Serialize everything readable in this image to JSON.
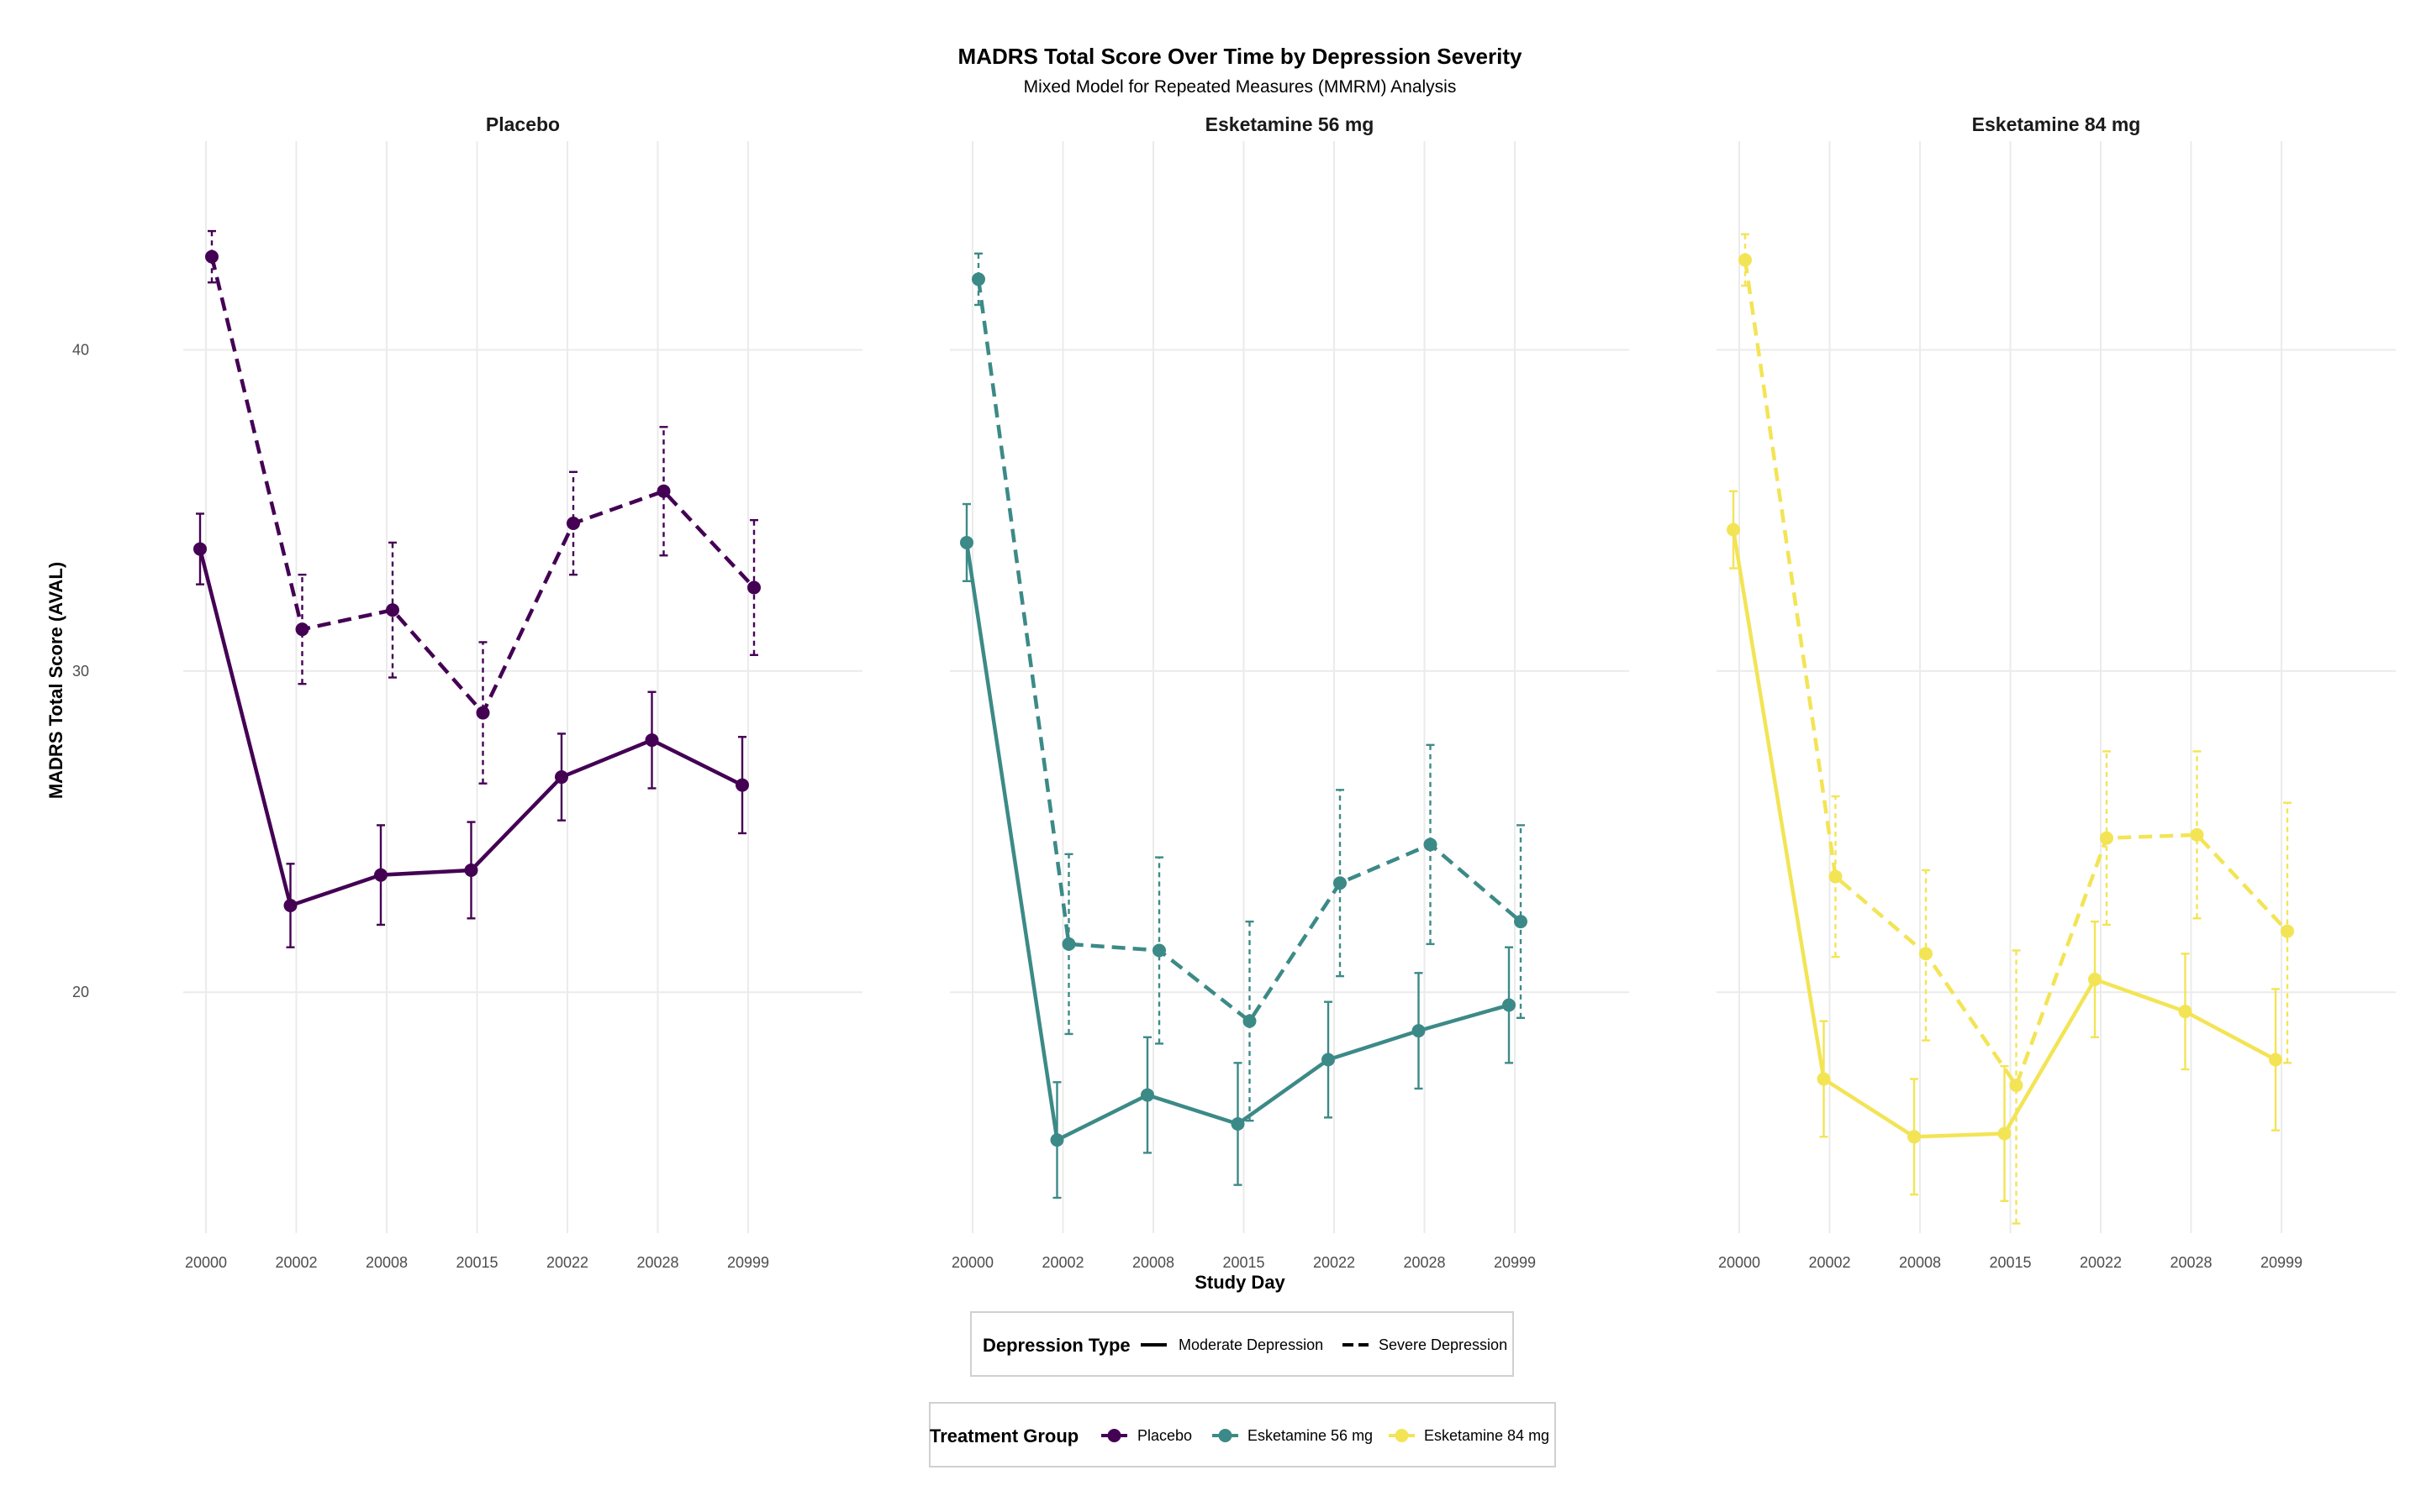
{
  "chart_data": {
    "type": "line",
    "title": "MADRS Total Score Over Time by Depression Severity",
    "subtitle": "Mixed Model for Repeated Measures (MMRM) Analysis",
    "xlabel": "Study Day",
    "ylabel": "MADRS Total Score (AVAL)",
    "x_categories": [
      "20000",
      "20002",
      "20008",
      "20015",
      "20022",
      "20028",
      "20999"
    ],
    "yticks": [
      20,
      30,
      40
    ],
    "ylim": [
      12.5,
      46.5
    ],
    "grid": true,
    "panels": [
      {
        "name": "Placebo",
        "color": "#440154",
        "series": [
          {
            "type": "Moderate Depression",
            "dash": "solid",
            "values": [
              33.8,
              22.7,
              23.65,
              23.8,
              26.7,
              27.85,
              26.45
            ],
            "lower": [
              32.7,
              21.4,
              22.1,
              22.3,
              25.35,
              26.35,
              24.95
            ],
            "upper": [
              34.9,
              24.0,
              25.2,
              25.3,
              28.05,
              29.35,
              27.95
            ]
          },
          {
            "type": "Severe Depression",
            "dash": "dashed",
            "values": [
              42.9,
              31.3,
              31.9,
              28.7,
              34.6,
              35.6,
              32.6
            ],
            "lower": [
              42.1,
              29.6,
              29.8,
              26.5,
              33.0,
              33.6,
              30.5
            ],
            "upper": [
              43.7,
              33.0,
              34.0,
              30.9,
              36.2,
              37.6,
              34.7
            ]
          }
        ]
      },
      {
        "name": "Esketamine 56 mg",
        "color": "#3c8a87",
        "series": [
          {
            "type": "Moderate Depression",
            "dash": "solid",
            "values": [
              34.0,
              15.4,
              16.8,
              15.9,
              17.9,
              18.8,
              19.6
            ],
            "lower": [
              32.8,
              13.6,
              15.0,
              14.0,
              16.1,
              17.0,
              17.8
            ],
            "upper": [
              35.2,
              17.2,
              18.6,
              17.8,
              19.7,
              20.6,
              21.4
            ]
          },
          {
            "type": "Severe Depression",
            "dash": "dashed",
            "values": [
              42.2,
              21.5,
              21.3,
              19.1,
              23.4,
              24.6,
              22.2
            ],
            "lower": [
              41.4,
              18.7,
              18.4,
              16.0,
              20.5,
              21.5,
              19.2
            ],
            "upper": [
              43.0,
              24.3,
              24.2,
              22.2,
              26.3,
              27.7,
              25.2
            ]
          }
        ]
      },
      {
        "name": "Esketamine 84 mg",
        "color": "#f3e455",
        "series": [
          {
            "type": "Moderate Depression",
            "dash": "solid",
            "values": [
              34.4,
              17.3,
              15.5,
              15.6,
              20.4,
              19.4,
              17.9
            ],
            "lower": [
              33.2,
              15.5,
              13.7,
              13.5,
              18.6,
              17.6,
              15.7
            ],
            "upper": [
              35.6,
              19.1,
              17.3,
              17.7,
              22.2,
              21.2,
              20.1
            ]
          },
          {
            "type": "Severe Depression",
            "dash": "dashed",
            "values": [
              42.8,
              23.6,
              21.2,
              17.1,
              24.8,
              24.9,
              21.9
            ],
            "lower": [
              42.0,
              21.1,
              18.5,
              12.8,
              22.1,
              22.3,
              17.8
            ],
            "upper": [
              43.6,
              26.1,
              23.8,
              21.3,
              27.5,
              27.5,
              25.9
            ]
          }
        ]
      }
    ],
    "legends": {
      "depression": {
        "title": "Depression Type",
        "items": [
          "Moderate Depression",
          "Severe Depression"
        ]
      },
      "treatment": {
        "title": "Treatment Group",
        "items": [
          "Placebo",
          "Esketamine 56 mg",
          "Esketamine 84 mg"
        ]
      },
      "placement": "bottom"
    }
  }
}
